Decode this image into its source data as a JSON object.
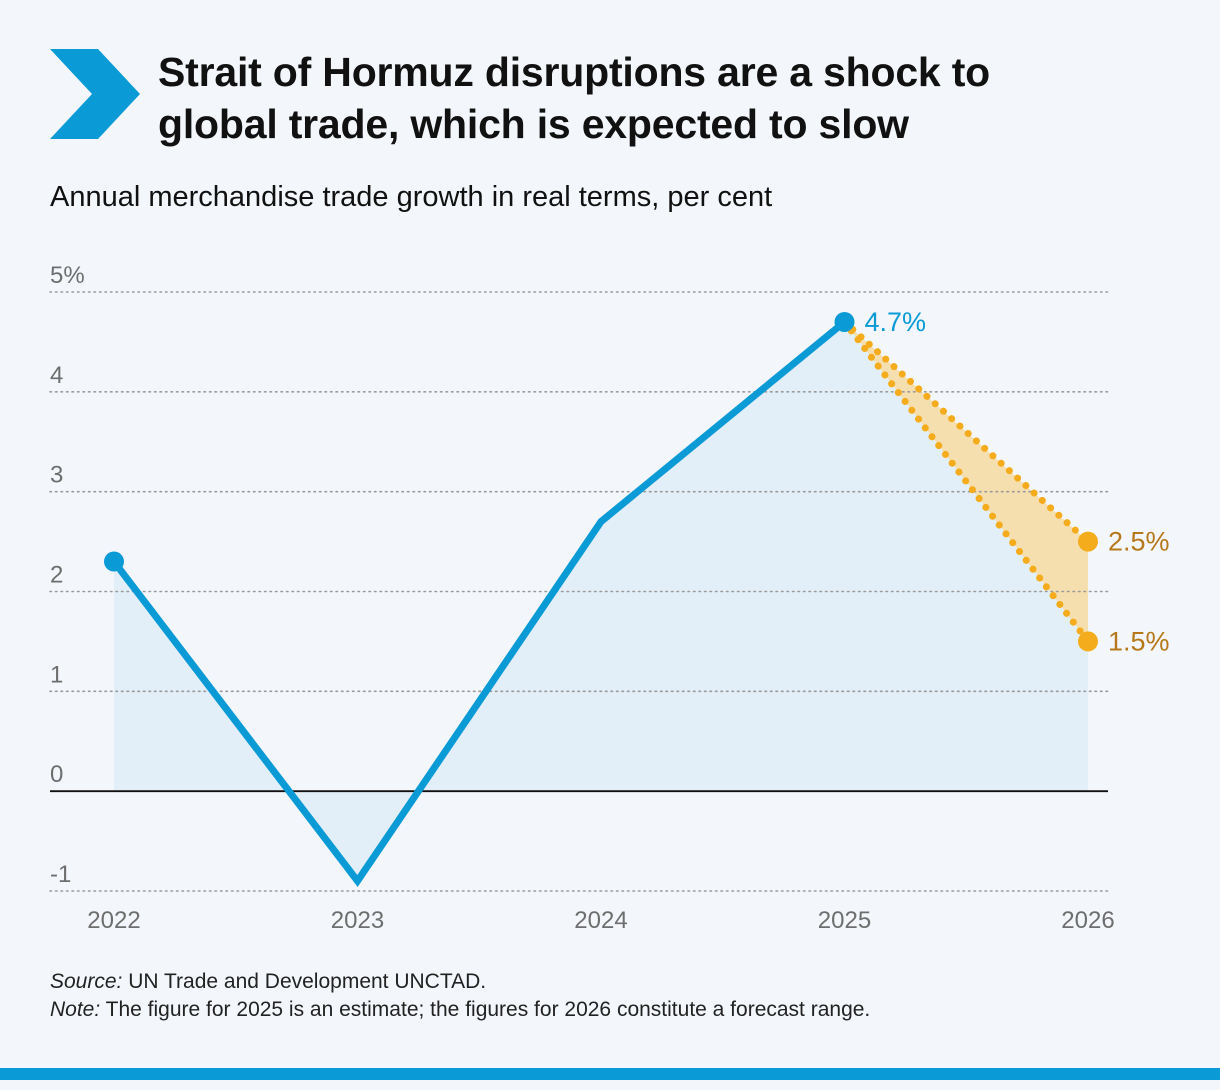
{
  "header": {
    "title_line1": "Strait of Hormuz disruptions are a shock to",
    "title_line2": "global trade, which is expected to slow",
    "subtitle": "Annual merchandise trade growth in real terms, per cent"
  },
  "colors": {
    "accent_blue": "#0a9ad6",
    "area_fill": "#e2eff8",
    "forecast_orange": "#f4ab1c",
    "forecast_fill": "#f6dfae",
    "forecast_label": "#b7781b",
    "axis_text": "#6e6e6e",
    "background": "#f3f7fb"
  },
  "icons": {
    "logo": "chevron-right-icon"
  },
  "chart_data": {
    "type": "line",
    "x": [
      "2022",
      "2023",
      "2024",
      "2025",
      "2026"
    ],
    "series": [
      {
        "values": [
          2.3,
          -0.9,
          2.7,
          4.7,
          null
        ],
        "markers": [
          "2022",
          "2025"
        ]
      }
    ],
    "forecast_range": {
      "from_x": "2025",
      "from_value": 4.7,
      "to_x": "2026",
      "low": 1.5,
      "high": 2.5
    },
    "point_labels": [
      {
        "x": "2025",
        "value": 4.7,
        "text": "4.7%"
      },
      {
        "x": "2026",
        "value": 2.5,
        "text": "2.5%"
      },
      {
        "x": "2026",
        "value": 1.5,
        "text": "1.5%"
      }
    ],
    "y_ticks": [
      {
        "value": 5,
        "label": "5%"
      },
      {
        "value": 4,
        "label": "4"
      },
      {
        "value": 3,
        "label": "3"
      },
      {
        "value": 2,
        "label": "2"
      },
      {
        "value": 1,
        "label": "1"
      },
      {
        "value": 0,
        "label": "0"
      },
      {
        "value": -1,
        "label": "-1"
      }
    ],
    "ylim": [
      -1,
      5
    ],
    "grid": "horizontal dotted",
    "xlabel": "",
    "ylabel": ""
  },
  "footnotes": {
    "source_lead": "Source:",
    "source_text": " UN Trade and Development UNCTAD.",
    "note_lead": "Note:",
    "note_text": " The figure for 2025 is an estimate; the figures for 2026 constitute a forecast range."
  }
}
